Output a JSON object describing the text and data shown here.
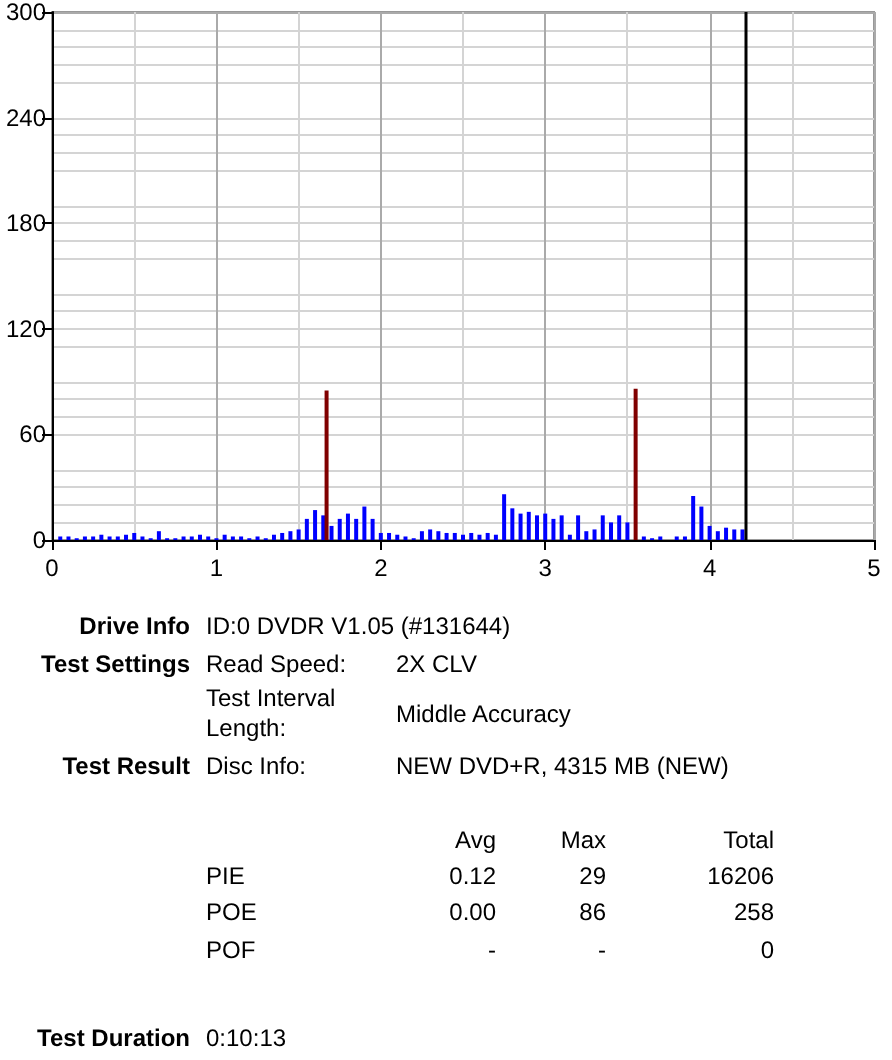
{
  "chart_data": {
    "type": "bar",
    "x": [
      0.05,
      0.1,
      0.15,
      0.2,
      0.25,
      0.3,
      0.35,
      0.4,
      0.45,
      0.5,
      0.55,
      0.6,
      0.65,
      0.7,
      0.75,
      0.8,
      0.85,
      0.9,
      0.95,
      1.0,
      1.05,
      1.1,
      1.15,
      1.2,
      1.25,
      1.3,
      1.35,
      1.4,
      1.45,
      1.5,
      1.55,
      1.6,
      1.65,
      1.7,
      1.75,
      1.8,
      1.85,
      1.9,
      1.95,
      2.0,
      2.05,
      2.1,
      2.15,
      2.2,
      2.25,
      2.3,
      2.35,
      2.4,
      2.45,
      2.5,
      2.55,
      2.6,
      2.65,
      2.7,
      2.75,
      2.8,
      2.85,
      2.9,
      2.95,
      3.0,
      3.05,
      3.1,
      3.15,
      3.2,
      3.25,
      3.3,
      3.35,
      3.4,
      3.45,
      3.5,
      3.55,
      3.6,
      3.65,
      3.7,
      3.75,
      3.8,
      3.85,
      3.9,
      3.95,
      4.0,
      4.05,
      4.1,
      4.15,
      4.2
    ],
    "series": [
      {
        "color": "#0000ff",
        "values": [
          2,
          2,
          1,
          2,
          2,
          3,
          2,
          2,
          3,
          4,
          2,
          1,
          5,
          1,
          1,
          2,
          2,
          3,
          2,
          1,
          3,
          2,
          2,
          1,
          2,
          1,
          3,
          4,
          5,
          6,
          12,
          17,
          14,
          8,
          12,
          15,
          12,
          19,
          12,
          4,
          4,
          3,
          2,
          1,
          5,
          6,
          5,
          4,
          4,
          3,
          4,
          3,
          4,
          3,
          26,
          18,
          15,
          16,
          14,
          15,
          12,
          14,
          3,
          14,
          5,
          6,
          14,
          10,
          14,
          10,
          null,
          2,
          1,
          2,
          0,
          2,
          2,
          25,
          19,
          8,
          5,
          7,
          6,
          6
        ]
      },
      {
        "color": "#800000",
        "x": [
          1.67,
          3.55
        ],
        "values": [
          85,
          86
        ]
      }
    ],
    "xlim": [
      0,
      5
    ],
    "xticks": [
      0,
      1,
      2,
      3,
      4,
      5
    ],
    "ylim": [
      0,
      300
    ],
    "yticks": [
      0,
      60,
      120,
      180,
      240,
      300
    ],
    "grid": true,
    "ref_lines": [
      {
        "axis": "x",
        "value": 4.22,
        "color": "#000000"
      }
    ],
    "annotations": [
      "Drive Info",
      "ID:0 DVDR V1.05 (#131644)",
      "Test Settings",
      "Read Speed:",
      "2X CLV",
      "Test Interval Length:",
      "Middle Accuracy",
      "Test Result",
      "Disc Info:",
      "NEW DVD+R, 4315 MB (NEW)",
      "Avg",
      "Max",
      "Total",
      "PIE",
      "0.12",
      "29",
      "16206",
      "POE",
      "0.00",
      "86",
      "258",
      "POF",
      "-",
      "-",
      "0",
      "Test Duration",
      "0:10:13"
    ]
  }
}
